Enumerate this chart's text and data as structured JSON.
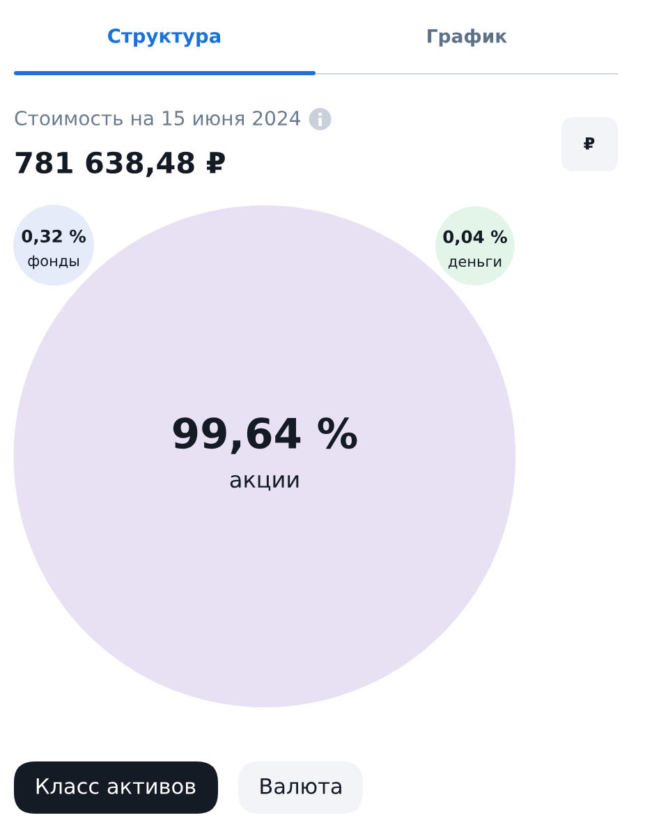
{
  "chart_data": {
    "type": "other",
    "title": "Стоимость на 15 июня 2024",
    "subtitle": "781 638,48 ₽",
    "categories": [
      "акции",
      "фонды",
      "деньги"
    ],
    "values": [
      99.64,
      0.32,
      0.04
    ],
    "value_labels": [
      "99,64 %",
      "0,32 %",
      "0,04 %"
    ],
    "colors": [
      "#e8e0f3",
      "#e5ebf8",
      "#e3f5e9"
    ],
    "annotations": [
      "Структура",
      "График",
      "₽",
      "Класс активов",
      "Валюта"
    ]
  }
}
